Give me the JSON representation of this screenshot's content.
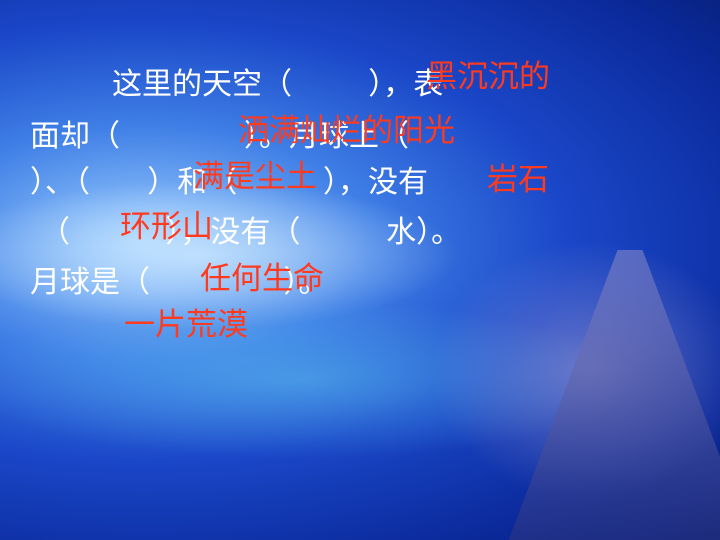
{
  "lines": [
    "这里的天空（        ），表",
    "面却（             ）。月球上（",
    "）、（      ）和（         ），没有",
    "（          ），没有（         水）。",
    "月球是（              ）。"
  ],
  "answers": [
    "黑沉沉的",
    "洒满灿烂的阳光",
    "满是尘土",
    "岩石",
    "环形山",
    "任何生命",
    "一片荒漠"
  ],
  "colors": {
    "text": "#ffffff",
    "answer": "#ff3a1e",
    "background": "#1a47c8"
  }
}
